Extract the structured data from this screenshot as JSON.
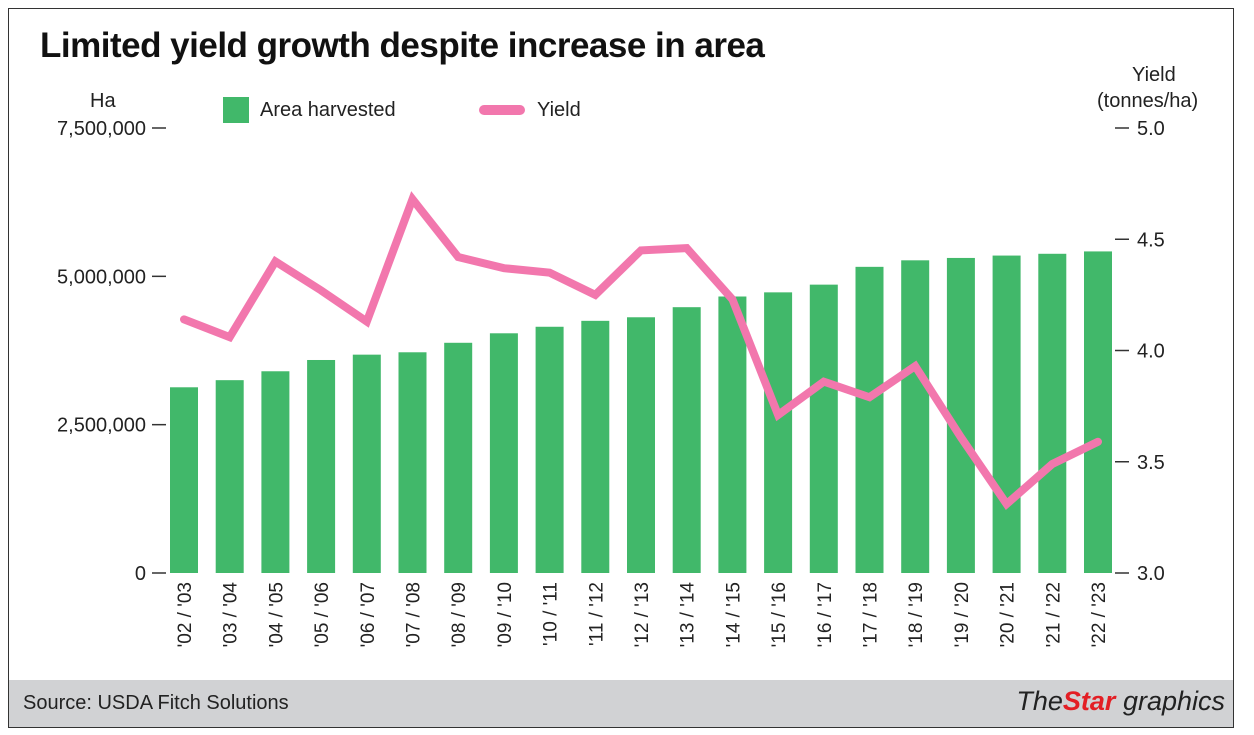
{
  "chart_data": {
    "type": "bar+line",
    "title": "Limited yield growth despite increase in area",
    "left_axis": {
      "label": "Ha",
      "ticks": [
        "0",
        "2,500,000",
        "5,000,000",
        "7,500,000"
      ],
      "range": [
        0,
        7500000
      ]
    },
    "right_axis": {
      "label_line1": "Yield",
      "label_line2": "(tonnes/ha)",
      "ticks": [
        "3.0",
        "3.5",
        "4.0",
        "4.5",
        "5.0"
      ],
      "range": [
        3.0,
        5.0
      ]
    },
    "categories": [
      "'02 / '03",
      "'03 / '04",
      "'04 / '05",
      "'05 / '06",
      "'06 / '07",
      "'07 / '08",
      "'08 / '09",
      "'09 / '10",
      "'10 / '11",
      "'11 / '12",
      "'12 / '13",
      "'13 / '14",
      "'14 / '15",
      "'15 / '16",
      "'16 / '17",
      "'17 / '18",
      "'18 / '19",
      "'19 / '20",
      "'20 / '21",
      "'21 / '22",
      "'22 / '23"
    ],
    "series": [
      {
        "name": "Area harvested",
        "type": "bar",
        "axis": "left",
        "color": "#41b86a",
        "values": [
          3130000,
          3250000,
          3400000,
          3590000,
          3680000,
          3720000,
          3880000,
          4040000,
          4150000,
          4250000,
          4310000,
          4480000,
          4660000,
          4730000,
          4860000,
          5160000,
          5270000,
          5310000,
          5350000,
          5380000,
          5420000
        ]
      },
      {
        "name": "Yield",
        "type": "line",
        "axis": "right",
        "color": "#f277ad",
        "values": [
          4.14,
          4.06,
          4.4,
          4.27,
          4.13,
          4.68,
          4.42,
          4.37,
          4.35,
          4.25,
          4.45,
          4.46,
          4.23,
          3.71,
          3.86,
          3.79,
          3.93,
          3.61,
          3.31,
          3.49,
          3.59
        ]
      }
    ],
    "legend_position": "top-left",
    "grid": false
  },
  "footer": {
    "source": "Source: USDA Fitch Solutions",
    "logo_the": "The",
    "logo_star": "Star",
    "logo_graphics": " graphics"
  }
}
